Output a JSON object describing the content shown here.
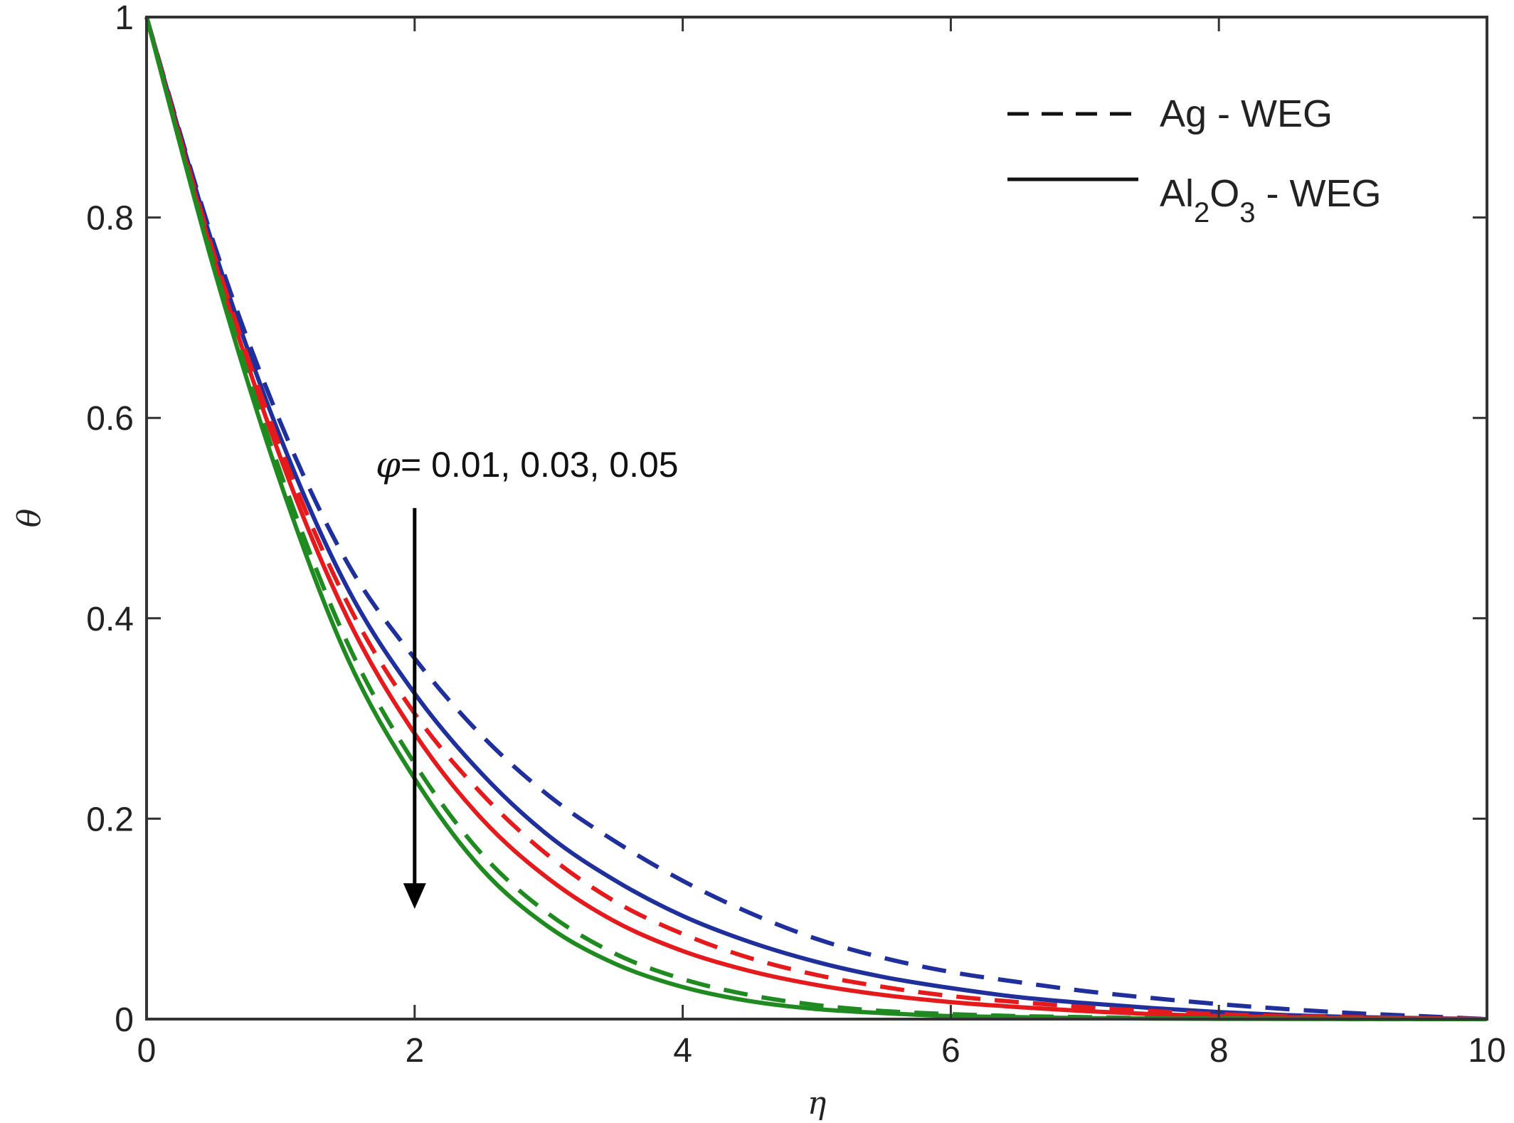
{
  "chart_data": {
    "type": "line",
    "xlabel": "η",
    "ylabel": "θ",
    "xlim": [
      0,
      10
    ],
    "ylim": [
      0,
      1
    ],
    "xticks": [
      "0",
      "2",
      "4",
      "6",
      "8",
      "10"
    ],
    "yticks": [
      "0",
      "0.2",
      "0.4",
      "0.6",
      "0.8",
      "1"
    ],
    "grid": false,
    "legend": {
      "placement": "top-right",
      "entries": [
        {
          "style": "dashed",
          "label_main": "Ag - WEG"
        },
        {
          "style": "solid",
          "label_parts": [
            "Al",
            "2",
            "O",
            "3",
            " - WEG"
          ]
        }
      ]
    },
    "annotation": {
      "symbol": "φ",
      "text": "= 0.01, 0.03, 0.05",
      "arrow_x": 2,
      "arrow_from_y": 0.51,
      "arrow_to_y": 0.11
    },
    "x": [
      0,
      0.5,
      1,
      1.5,
      2,
      2.5,
      3,
      3.5,
      4,
      4.5,
      5,
      5.5,
      6,
      6.5,
      7,
      7.5,
      8,
      8.5,
      9,
      9.5,
      10
    ],
    "series": [
      {
        "color": "#1f2f9c",
        "style": "dashed",
        "phi": "0.01",
        "values": [
          1.0,
          0.775,
          0.595,
          0.455,
          0.36,
          0.283,
          0.223,
          0.177,
          0.138,
          0.106,
          0.08,
          0.061,
          0.047,
          0.037,
          0.028,
          0.021,
          0.015,
          0.01,
          0.006,
          0.003,
          0.0
        ]
      },
      {
        "color": "#1f2f9c",
        "style": "solid",
        "phi": "0.01",
        "values": [
          1.0,
          0.77,
          0.58,
          0.43,
          0.325,
          0.245,
          0.183,
          0.138,
          0.103,
          0.077,
          0.057,
          0.042,
          0.031,
          0.022,
          0.016,
          0.011,
          0.007,
          0.004,
          0.002,
          0.001,
          0.0
        ]
      },
      {
        "color": "#e41a1c",
        "style": "dashed",
        "phi": "0.03",
        "values": [
          1.0,
          0.765,
          0.57,
          0.415,
          0.305,
          0.225,
          0.163,
          0.117,
          0.085,
          0.061,
          0.044,
          0.032,
          0.023,
          0.017,
          0.012,
          0.008,
          0.005,
          0.003,
          0.002,
          0.001,
          0.0
        ]
      },
      {
        "color": "#e41a1c",
        "style": "solid",
        "phi": "0.03",
        "values": [
          1.0,
          0.76,
          0.56,
          0.4,
          0.285,
          0.2,
          0.14,
          0.097,
          0.068,
          0.048,
          0.034,
          0.024,
          0.017,
          0.012,
          0.008,
          0.005,
          0.003,
          0.002,
          0.001,
          0.0005,
          0.0
        ]
      },
      {
        "color": "#1f8a1f",
        "style": "dashed",
        "phi": "0.05",
        "values": [
          1.0,
          0.755,
          0.545,
          0.375,
          0.255,
          0.165,
          0.105,
          0.065,
          0.04,
          0.024,
          0.014,
          0.008,
          0.005,
          0.003,
          0.002,
          0.001,
          0.0007,
          0.0004,
          0.0002,
          0.0001,
          0.0
        ]
      },
      {
        "color": "#1f8a1f",
        "style": "solid",
        "phi": "0.05",
        "values": [
          1.0,
          0.75,
          0.535,
          0.36,
          0.24,
          0.15,
          0.092,
          0.055,
          0.032,
          0.018,
          0.01,
          0.006,
          0.003,
          0.002,
          0.001,
          0.0006,
          0.0003,
          0.0002,
          0.0001,
          5e-05,
          0.0
        ]
      }
    ]
  }
}
